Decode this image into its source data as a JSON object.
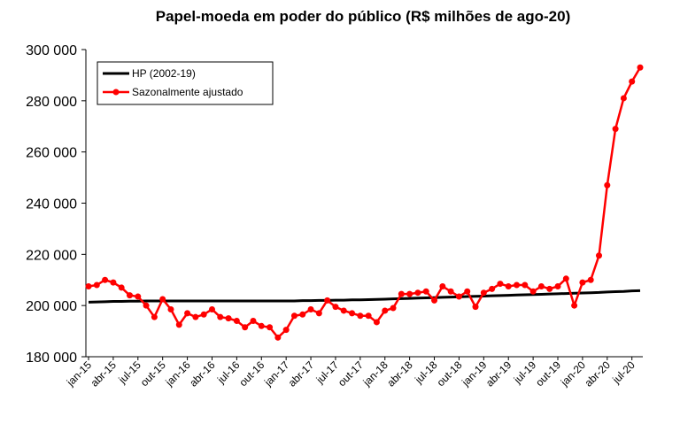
{
  "chart_data": {
    "type": "line",
    "title": "Papel-moeda em poder do público (R$ milhões de ago-20)",
    "categories": [
      "jan-15",
      null,
      null,
      "abr-15",
      null,
      null,
      "jul-15",
      null,
      null,
      "out-15",
      null,
      null,
      "jan-16",
      null,
      null,
      "abr-16",
      null,
      null,
      "jul-16",
      null,
      null,
      "out-16",
      null,
      null,
      "jan-17",
      null,
      null,
      "abr-17",
      null,
      null,
      "jul-17",
      null,
      null,
      "out-17",
      null,
      null,
      "jan-18",
      null,
      null,
      "abr-18",
      null,
      null,
      "jul-18",
      null,
      null,
      "out-18",
      null,
      null,
      "jan-19",
      null,
      null,
      "abr-19",
      null,
      null,
      "jul-19",
      null,
      null,
      "out-19",
      null,
      null,
      "jan-20",
      null,
      null,
      "abr-20",
      null,
      null,
      "jul-20",
      null
    ],
    "series": [
      {
        "name": "HP (2002-19)",
        "color": "#000000",
        "marker": false,
        "values": [
          201300,
          201400,
          201500,
          201600,
          201600,
          201700,
          201700,
          201800,
          201800,
          201800,
          201800,
          201800,
          201800,
          201800,
          201800,
          201800,
          201800,
          201800,
          201800,
          201800,
          201800,
          201800,
          201800,
          201800,
          201800,
          201800,
          201900,
          201900,
          202000,
          202000,
          202100,
          202100,
          202200,
          202200,
          202300,
          202400,
          202500,
          202600,
          202700,
          202800,
          202900,
          203000,
          203100,
          203200,
          203300,
          203400,
          203500,
          203600,
          203700,
          203800,
          203900,
          204000,
          204100,
          204200,
          204300,
          204400,
          204500,
          204600,
          204700,
          204800,
          204900,
          205000,
          205100,
          205300,
          205400,
          205500,
          205700,
          205800
        ]
      },
      {
        "name": "Sazonalmente ajustado",
        "color": "#ff0000",
        "marker": true,
        "values": [
          207500,
          208000,
          210000,
          209000,
          207000,
          204000,
          203500,
          200000,
          195500,
          202500,
          198500,
          192500,
          197000,
          195500,
          196500,
          198500,
          195500,
          195000,
          194000,
          191500,
          194000,
          192000,
          191500,
          187500,
          190500,
          196000,
          196500,
          198500,
          197000,
          202000,
          199500,
          198000,
          197000,
          196000,
          196000,
          193500,
          198000,
          199000,
          204500,
          204500,
          205000,
          205500,
          202000,
          207500,
          205500,
          203500,
          205500,
          199500,
          205000,
          206500,
          208500,
          207500,
          208000,
          208000,
          205500,
          207500,
          206500,
          207500,
          210500,
          200000,
          209000,
          210000,
          219500,
          247000,
          269000,
          281000,
          287500,
          293000
        ]
      }
    ],
    "ylim": [
      180000,
      300000
    ],
    "yticks": [
      {
        "value": 180000,
        "label": "180 000"
      },
      {
        "value": 200000,
        "label": "200 000"
      },
      {
        "value": 220000,
        "label": "220 000"
      },
      {
        "value": 240000,
        "label": "240 000"
      },
      {
        "value": 260000,
        "label": "260 000"
      },
      {
        "value": 280000,
        "label": "280 000"
      },
      {
        "value": 300000,
        "label": "300 000"
      }
    ],
    "grid": false,
    "legend": "upper left"
  }
}
